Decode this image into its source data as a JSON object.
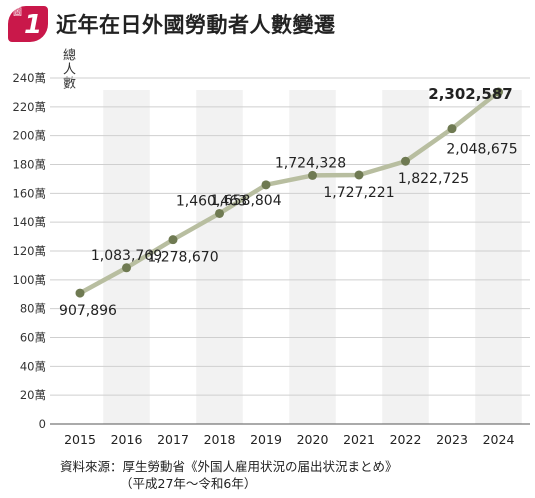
{
  "header": {
    "badge_label": "圖",
    "badge_number": "1",
    "title": "近年在日外國勞動者人數變遷"
  },
  "chart_data": {
    "type": "line",
    "title": "近年在日外國勞動者人數變遷",
    "ylabel": "總人數",
    "xlabel": "",
    "categories": [
      "2015",
      "2016",
      "2017",
      "2018",
      "2019",
      "2020",
      "2021",
      "2022",
      "2023",
      "2024"
    ],
    "series": [
      {
        "values": [
          907896,
          1083769,
          1278670,
          1460463,
          1658804,
          1724328,
          1727221,
          1822725,
          2048675,
          2302587
        ]
      }
    ],
    "data_labels": [
      "907,896",
      "1,083,769",
      "1,278,670",
      "1,460,463",
      "1,658,804",
      "1,724,328",
      "1,727,221",
      "1,822,725",
      "2,048,675",
      "2,302,587"
    ],
    "y_ticks": [
      "0",
      "20萬",
      "40萬",
      "60萬",
      "80萬",
      "100萬",
      "120萬",
      "140萬",
      "160萬",
      "180萬",
      "200萬",
      "220萬",
      "240萬"
    ],
    "ylim": [
      0,
      2400000
    ],
    "grid": "horizontal",
    "line_color": "#b8bea0",
    "marker_color": "#6f7a52",
    "band_color": "#f2f2f2"
  },
  "source": {
    "line1": "資料來源：厚生勞動省《外国人雇用状況の届出状況まとめ》",
    "line2": "（平成27年～令和6年）"
  }
}
